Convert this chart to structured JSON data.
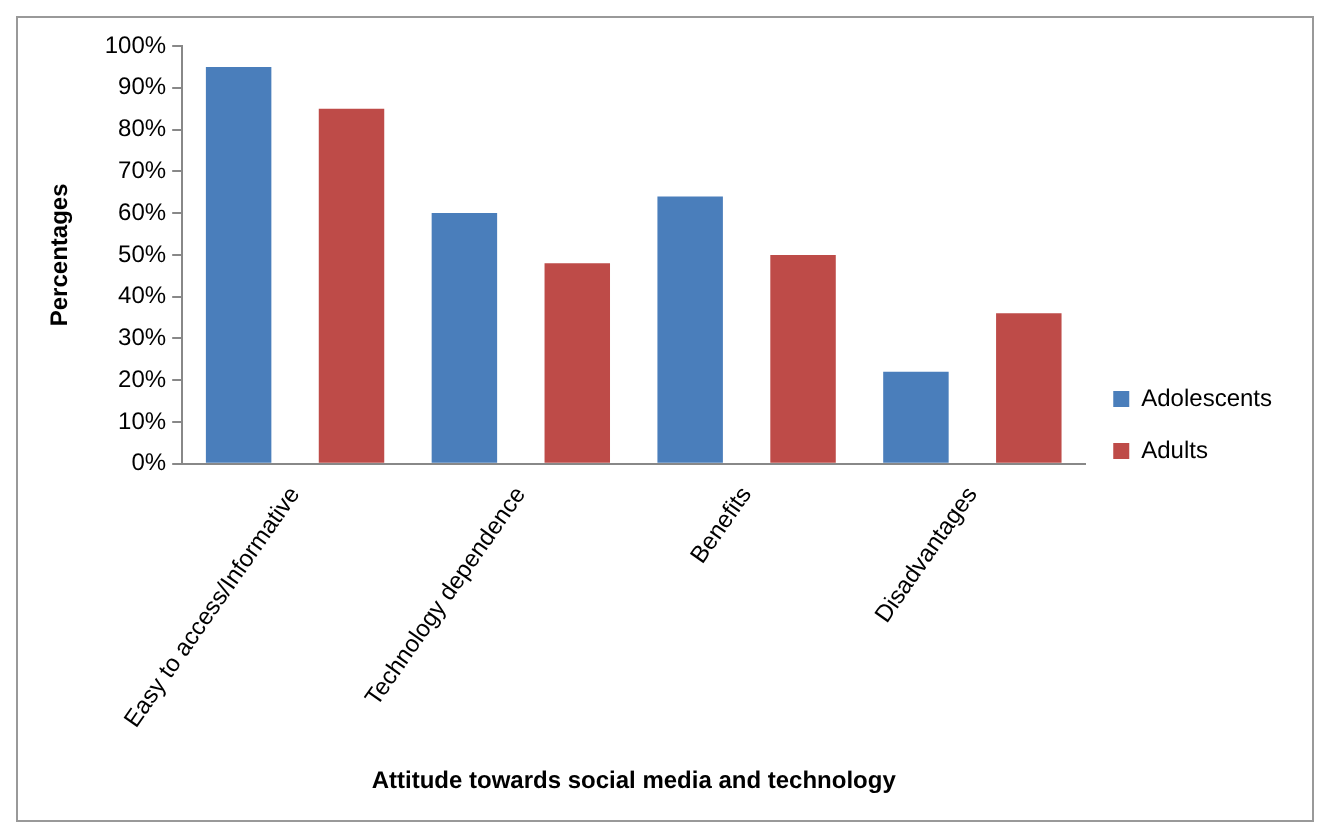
{
  "chart_data": {
    "type": "bar",
    "xlabel": "Attitude towards social media and technology",
    "ylabel": "Percentages",
    "categories": [
      "Easy to access/Informative",
      "Technology dependence",
      "Benefits",
      "Disadvantages"
    ],
    "series": [
      {
        "name": "Adolescents",
        "color": "#4a7ebb",
        "values": [
          95,
          60,
          64,
          22
        ]
      },
      {
        "name": "Adults",
        "color": "#be4b48",
        "values": [
          85,
          48,
          50,
          36
        ]
      }
    ],
    "ylim": [
      0,
      100
    ],
    "yticks": [
      {
        "value": 0,
        "label": "0%"
      },
      {
        "value": 10,
        "label": "10%"
      },
      {
        "value": 20,
        "label": "20%"
      },
      {
        "value": 30,
        "label": "30%"
      },
      {
        "value": 40,
        "label": "40%"
      },
      {
        "value": 50,
        "label": "50%"
      },
      {
        "value": 60,
        "label": "60%"
      },
      {
        "value": 70,
        "label": "70%"
      },
      {
        "value": 80,
        "label": "80%"
      },
      {
        "value": 90,
        "label": "90%"
      },
      {
        "value": 100,
        "label": "100%"
      }
    ],
    "grid": false,
    "legend": "right"
  }
}
